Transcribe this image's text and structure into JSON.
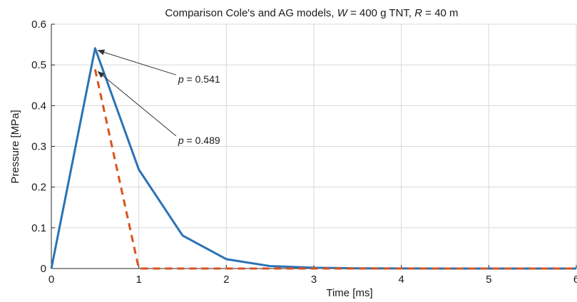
{
  "chart_data": {
    "type": "line",
    "title": {
      "prefix": "Comparison Cole's and AG models, ",
      "w_var": "W",
      "w_value": " = 400 g TNT, ",
      "r_var": "R",
      "r_value": " = 40 m"
    },
    "xlabel": "Time [ms]",
    "ylabel": "Pressure [MPa]",
    "xlim": [
      0,
      6
    ],
    "ylim": [
      0,
      0.6
    ],
    "xticks": [
      0,
      1,
      2,
      3,
      4,
      5,
      6
    ],
    "yticks": [
      0,
      0.1,
      0.2,
      0.3,
      0.4,
      0.5,
      0.6
    ],
    "xtick_labels": [
      "0",
      "1",
      "2",
      "3",
      "4",
      "5",
      "6"
    ],
    "ytick_labels": [
      "0",
      "0.1",
      "0.2",
      "0.3",
      "0.4",
      "0.5",
      "0.6"
    ],
    "grid": true,
    "series": [
      {
        "style": "solid",
        "color": "#2a72b5",
        "x": [
          0,
          0.5,
          1.0,
          1.5,
          2.0,
          2.5,
          3.0,
          3.5,
          4.0,
          4.5,
          5.0,
          5.5,
          6.0
        ],
        "y": [
          0,
          0.541,
          0.243,
          0.081,
          0.023,
          0.006,
          0.002,
          0.0005,
          0.0002,
          0,
          0,
          0,
          0
        ]
      },
      {
        "style": "dashed",
        "color": "#d9531e",
        "x": [
          0.5,
          1.0,
          6.0
        ],
        "y": [
          0.489,
          0,
          0
        ]
      }
    ],
    "annotations": [
      {
        "var": "p",
        "text": " = 0.541",
        "x": 1.45,
        "y": 0.465,
        "point": [
          0.5,
          0.541
        ]
      },
      {
        "var": "p",
        "text": " = 0.489",
        "x": 1.45,
        "y": 0.315,
        "point": [
          0.5,
          0.489
        ]
      }
    ]
  }
}
